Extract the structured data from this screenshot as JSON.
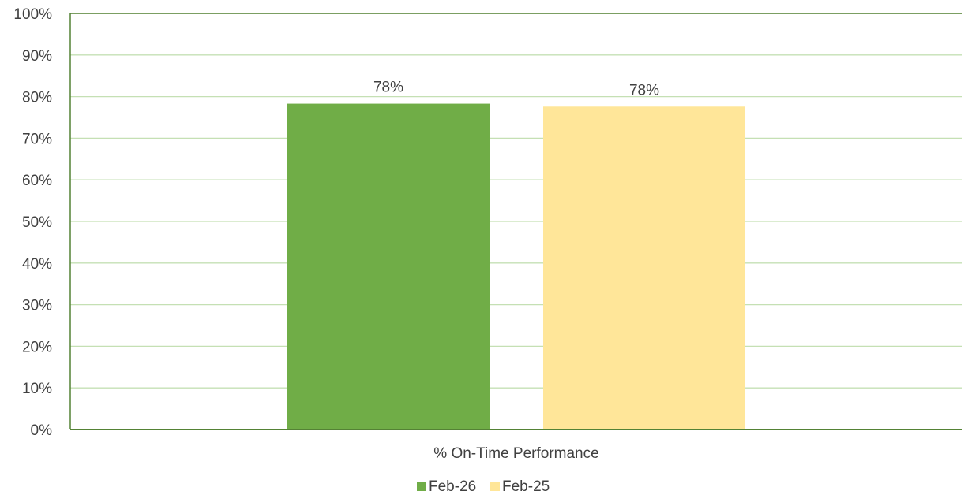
{
  "chart_data": {
    "type": "bar",
    "categories": [
      "% On-Time Performance"
    ],
    "series": [
      {
        "name": "Feb-26",
        "values": [
          78.3
        ],
        "color": "#70AD47",
        "label": "78%"
      },
      {
        "name": "Feb-25",
        "values": [
          77.6
        ],
        "color": "#FFE699",
        "label": "78%"
      }
    ],
    "ylim": [
      0,
      100
    ],
    "yticks": [
      0,
      10,
      20,
      30,
      40,
      50,
      60,
      70,
      80,
      90,
      100
    ],
    "ytick_labels": [
      "0%",
      "10%",
      "20%",
      "30%",
      "40%",
      "50%",
      "60%",
      "70%",
      "80%",
      "90%",
      "100%"
    ],
    "grid": true,
    "legend_position": "bottom",
    "colors": {
      "axis": "#548235",
      "grid": "#C5E0B4"
    }
  }
}
